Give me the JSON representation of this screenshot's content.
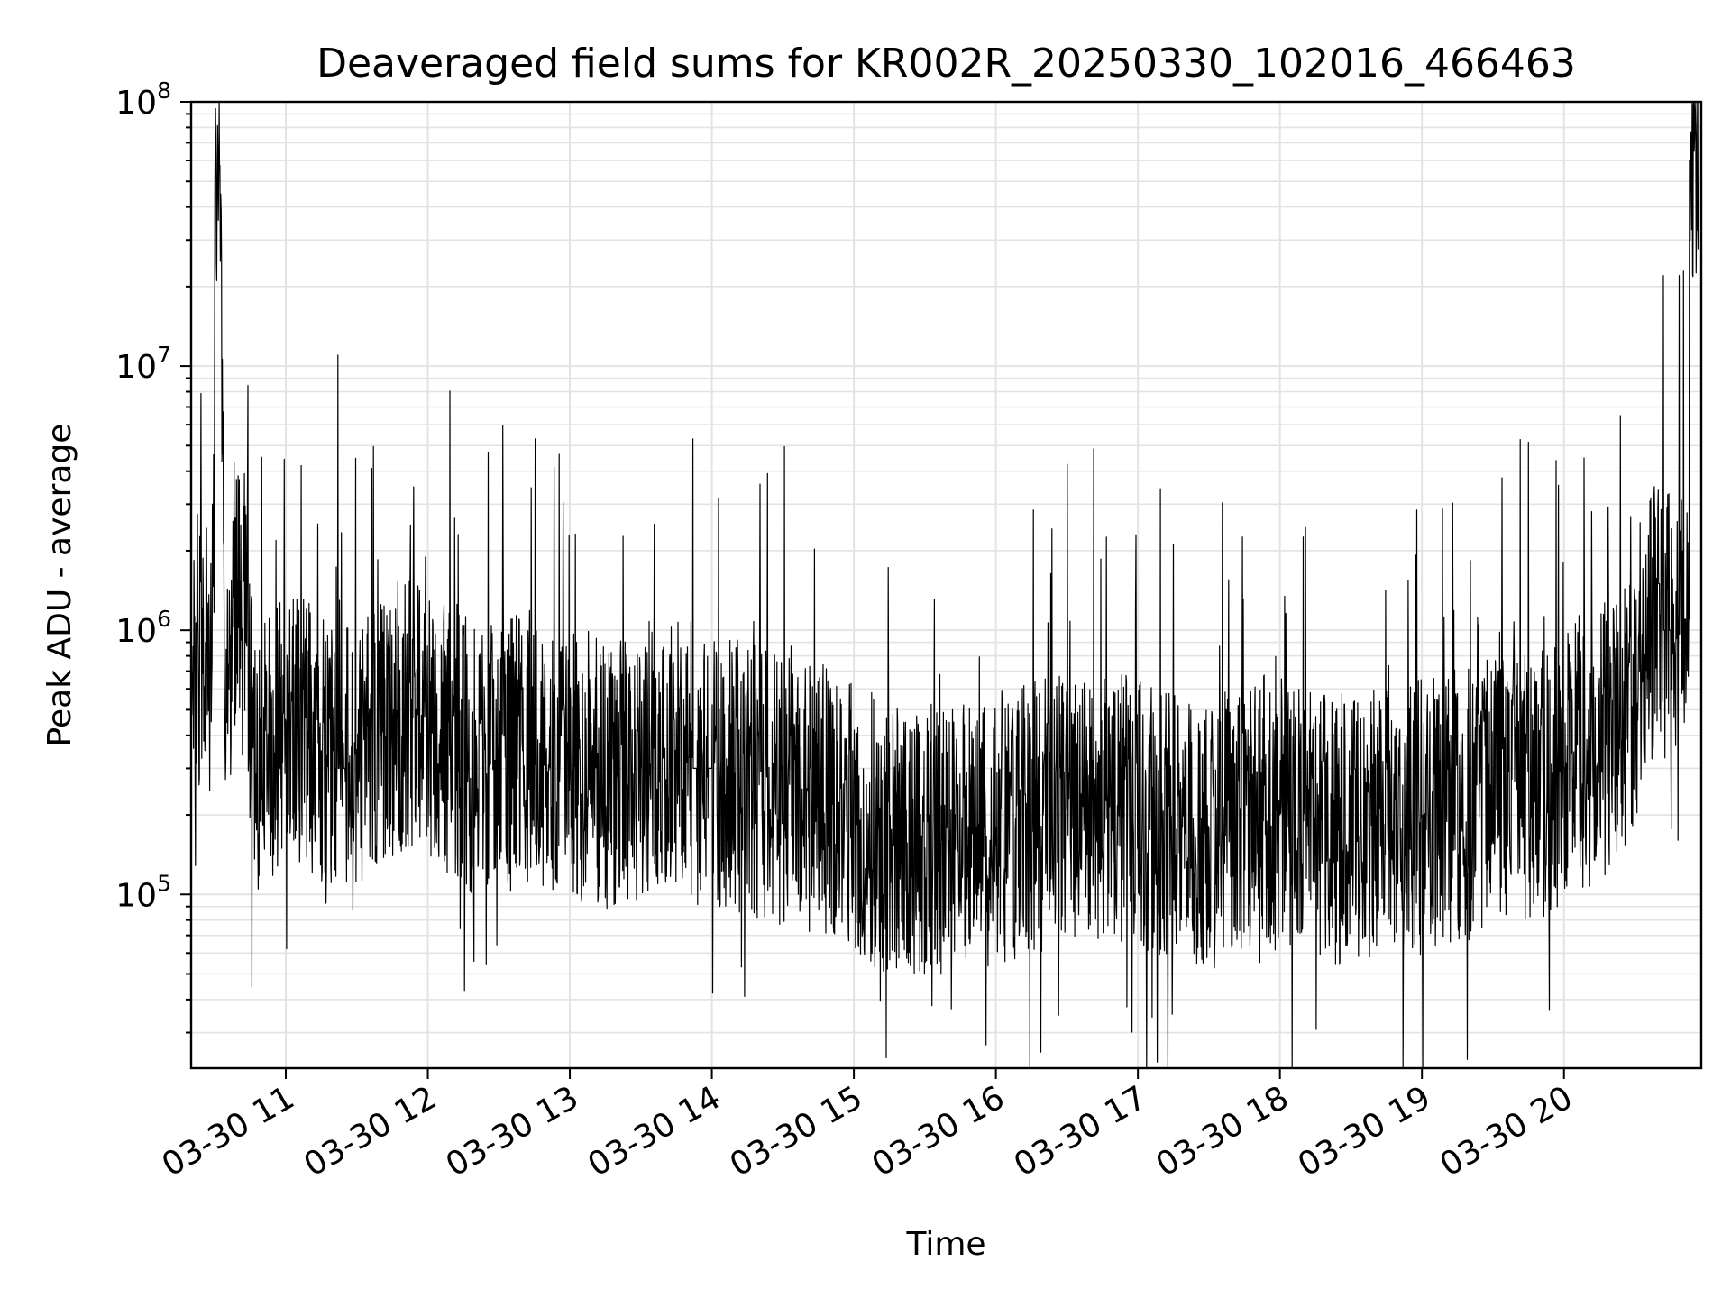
{
  "chart_data": {
    "type": "line",
    "title": "Deaveraged field sums for KR002R_20250330_102016_466463",
    "xlabel": "Time",
    "ylabel": "Peak ADU - average",
    "yscale": "log",
    "ylim": [
      22000,
      100000000
    ],
    "xlim": [
      "2025-03-30 10:20",
      "2025-03-30 20:58"
    ],
    "grid": "major and minor, both axes",
    "x_tick_labels": [
      "03-30 11",
      "03-30 12",
      "03-30 13",
      "03-30 14",
      "03-30 15",
      "03-30 16",
      "03-30 17",
      "03-30 18",
      "03-30 19",
      "03-30 20"
    ],
    "y_tick_labels": [
      {
        "base": "10",
        "exp": "5",
        "value": 100000
      },
      {
        "base": "10",
        "exp": "6",
        "value": 1000000
      },
      {
        "base": "10",
        "exp": "7",
        "value": 10000000
      },
      {
        "base": "10",
        "exp": "8",
        "value": 100000000
      }
    ],
    "line_color": "#000000",
    "series": [
      {
        "x": [
          "2025-03-30 10:20",
          "2025-03-30 10:23",
          "2025-03-30 10:26",
          "2025-03-30 10:28",
          "2025-03-30 10:29",
          "2025-03-30 10:30",
          "2025-03-30 10:31",
          "2025-03-30 10:32",
          "2025-03-30 10:34",
          "2025-03-30 10:36",
          "2025-03-30 10:38",
          "2025-03-30 10:40",
          "2025-03-30 10:43",
          "2025-03-30 10:46",
          "2025-03-30 10:50",
          "2025-03-30 10:55",
          "2025-03-30 11:00",
          "2025-03-30 11:05",
          "2025-03-30 11:10",
          "2025-03-30 11:15",
          "2025-03-30 11:20",
          "2025-03-30 11:22",
          "2025-03-30 11:25",
          "2025-03-30 11:30",
          "2025-03-30 11:35",
          "2025-03-30 11:40",
          "2025-03-30 11:45",
          "2025-03-30 11:50",
          "2025-03-30 11:55",
          "2025-03-30 12:00",
          "2025-03-30 12:10",
          "2025-03-30 12:20",
          "2025-03-30 12:30",
          "2025-03-30 12:40",
          "2025-03-30 12:50",
          "2025-03-30 13:00",
          "2025-03-30 13:10",
          "2025-03-30 13:20",
          "2025-03-30 13:30",
          "2025-03-30 13:40",
          "2025-03-30 13:50",
          "2025-03-30 13:52",
          "2025-03-30 14:00",
          "2025-03-30 14:10",
          "2025-03-30 14:20",
          "2025-03-30 14:30",
          "2025-03-30 14:40",
          "2025-03-30 14:50",
          "2025-03-30 15:00",
          "2025-03-30 15:10",
          "2025-03-30 15:20",
          "2025-03-30 15:30",
          "2025-03-30 15:40",
          "2025-03-30 15:50",
          "2025-03-30 16:00",
          "2025-03-30 16:10",
          "2025-03-30 16:20",
          "2025-03-30 16:30",
          "2025-03-30 16:40",
          "2025-03-30 16:50",
          "2025-03-30 17:00",
          "2025-03-30 17:10",
          "2025-03-30 17:20",
          "2025-03-30 17:30",
          "2025-03-30 17:40",
          "2025-03-30 17:50",
          "2025-03-30 18:00",
          "2025-03-30 18:10",
          "2025-03-30 18:20",
          "2025-03-30 18:30",
          "2025-03-30 18:40",
          "2025-03-30 18:50",
          "2025-03-30 19:00",
          "2025-03-30 19:10",
          "2025-03-30 19:20",
          "2025-03-30 19:30",
          "2025-03-30 19:40",
          "2025-03-30 19:50",
          "2025-03-30 20:00",
          "2025-03-30 20:10",
          "2025-03-30 20:20",
          "2025-03-30 20:30",
          "2025-03-30 20:35",
          "2025-03-30 20:40",
          "2025-03-30 20:42",
          "2025-03-30 20:45",
          "2025-03-30 20:48",
          "2025-03-30 20:51",
          "2025-03-30 20:53",
          "2025-03-30 20:55",
          "2025-03-30 20:57"
        ],
        "values": [
          780000,
          850000,
          900000,
          750000,
          3000000,
          45000000,
          50000000,
          55000000,
          800000,
          600000,
          1500000,
          1200000,
          900000,
          400000,
          300000,
          400000,
          450000,
          420000,
          380000,
          350000,
          350000,
          11000000,
          300000,
          350000,
          400000,
          420000,
          450000,
          480000,
          500000,
          450000,
          380000,
          320000,
          330000,
          350000,
          340000,
          300000,
          300000,
          280000,
          300000,
          320000,
          330000,
          5300000,
          300000,
          280000,
          260000,
          250000,
          240000,
          230000,
          200000,
          170000,
          160000,
          150000,
          160000,
          170000,
          180000,
          190000,
          200000,
          210000,
          220000,
          210000,
          200000,
          180000,
          170000,
          180000,
          200000,
          210000,
          200000,
          190000,
          180000,
          170000,
          180000,
          190000,
          200000,
          210000,
          220000,
          240000,
          250000,
          260000,
          300000,
          350000,
          400000,
          500000,
          800000,
          1500000,
          22000000,
          1000000,
          1200000,
          1100000,
          60000000,
          65000000,
          60000000
        ]
      }
    ]
  }
}
